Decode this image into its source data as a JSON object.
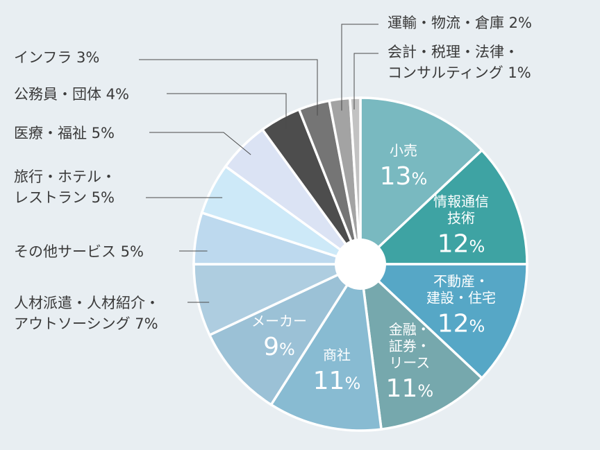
{
  "chart_data": {
    "type": "pie",
    "donut_hole": true,
    "start": "top, clockwise",
    "slices": [
      {
        "label": "小売",
        "value": 13,
        "color": "#79b9c0",
        "inside": true,
        "lines": [
          "小売"
        ],
        "pct_text": "13",
        "pct_sign": "%"
      },
      {
        "label": "情報通信技術",
        "value": 12,
        "color": "#3ea3a3",
        "inside": true,
        "lines": [
          "情報通信",
          "技術"
        ],
        "pct_text": "12",
        "pct_sign": "%"
      },
      {
        "label": "不動産・建設・住宅",
        "value": 12,
        "color": "#56a7c6",
        "inside": true,
        "lines": [
          "不動産・",
          "建設・住宅"
        ],
        "pct_text": "12",
        "pct_sign": "%"
      },
      {
        "label": "金融・証券・リース",
        "value": 11,
        "color": "#76a8ad",
        "inside": true,
        "lines": [
          "金融・",
          "証券・",
          "リース"
        ],
        "pct_text": "11",
        "pct_sign": "%"
      },
      {
        "label": "商社",
        "value": 11,
        "color": "#88bbd2",
        "inside": true,
        "lines": [
          "商社"
        ],
        "pct_text": "11",
        "pct_sign": "%"
      },
      {
        "label": "メーカー",
        "value": 9,
        "color": "#9bc1d6",
        "inside": true,
        "lines": [
          "メーカー"
        ],
        "pct_text": "9",
        "pct_sign": "%"
      },
      {
        "label": "人材派遣・人材紹介・アウトソーシング",
        "value": 7,
        "color": "#aecde0",
        "inside": false,
        "lines": [
          "人材派遣・人材紹介・",
          "アウトソーシング  7%"
        ]
      },
      {
        "label": "その他サービス",
        "value": 5,
        "color": "#bdd9ee",
        "inside": false,
        "lines": [
          "その他サービス  5%"
        ]
      },
      {
        "label": "旅行・ホテル・レストラン",
        "value": 5,
        "color": "#cde9f8",
        "inside": false,
        "lines": [
          "旅行・ホテル・",
          "レストラン  5%"
        ]
      },
      {
        "label": "医療・福祉",
        "value": 5,
        "color": "#dbe3f4",
        "inside": false,
        "lines": [
          "医療・福祉  5%"
        ]
      },
      {
        "label": "公務員・団体",
        "value": 4,
        "color": "#4d4d4d",
        "inside": false,
        "lines": [
          "公務員・団体  4%"
        ]
      },
      {
        "label": "インフラ",
        "value": 3,
        "color": "#757575",
        "inside": false,
        "lines": [
          "インフラ  3%"
        ]
      },
      {
        "label": "運輸・物流・倉庫",
        "value": 2,
        "color": "#a3a3a3",
        "inside": false,
        "lines": [
          "運輸・物流・倉庫  2%"
        ]
      },
      {
        "label": "会計・税理・法律・コンサルティング",
        "value": 1,
        "color": "#c2c2c2",
        "inside": false,
        "lines": [
          "会計・税理・法律・",
          "コンサルティング 1%"
        ]
      }
    ]
  }
}
